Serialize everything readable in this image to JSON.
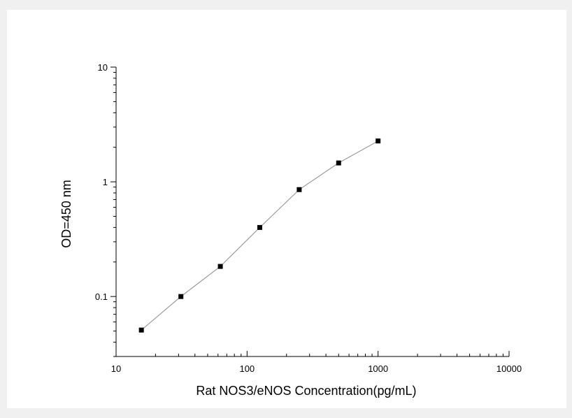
{
  "chart_data": {
    "type": "scatter",
    "xlabel": "Rat NOS3/eNOS  Concentration(pg/mL)",
    "ylabel": "OD=450 nm",
    "x_scale": "log",
    "y_scale": "log",
    "xlim": [
      10,
      10000
    ],
    "ylim": [
      0.03,
      10
    ],
    "x_ticks": [
      10,
      100,
      1000,
      10000
    ],
    "x_tick_labels": [
      "10",
      "100",
      "1000",
      "10000"
    ],
    "y_ticks": [
      0.1,
      1,
      10
    ],
    "y_tick_labels": [
      "0.1",
      "1",
      "10"
    ],
    "grid": false,
    "legend": "none",
    "series": [
      {
        "x": [
          15.6,
          31.25,
          62.5,
          125,
          250,
          500,
          1000
        ],
        "y": [
          0.051,
          0.1,
          0.183,
          0.4,
          0.855,
          1.46,
          2.27
        ],
        "marker": "square",
        "marker_color": "#000000",
        "line_color": "#8c8c8c"
      }
    ]
  }
}
